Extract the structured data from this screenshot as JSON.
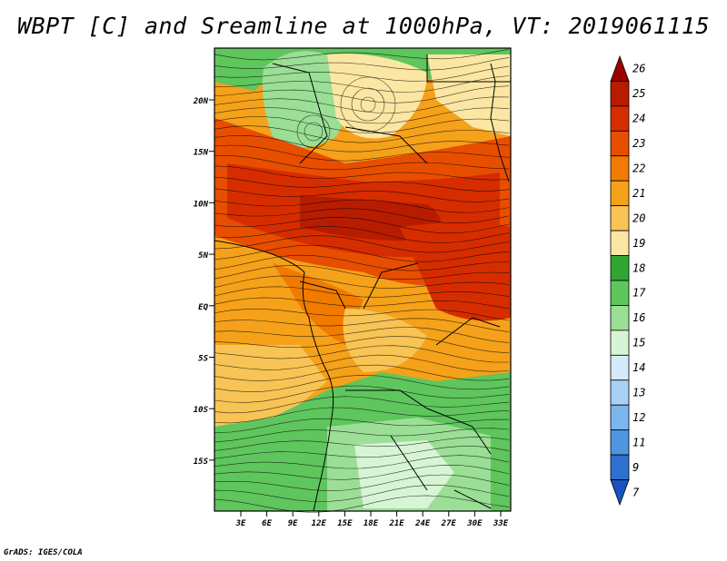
{
  "title": "WBPT [C] and Sreamline at 1000hPa, VT: 2019061115",
  "credit": "GrADS: IGES/COLA",
  "map": {
    "lat_labels": [
      "20N",
      "15N",
      "10N",
      "5N",
      "EQ",
      "5S",
      "10S",
      "15S"
    ],
    "lon_labels": [
      "3E",
      "6E",
      "9E",
      "12E",
      "15E",
      "18E",
      "21E",
      "24E",
      "27E",
      "30E",
      "33E"
    ]
  },
  "colorbar": {
    "labels": [
      "26",
      "25",
      "24",
      "23",
      "22",
      "21",
      "20",
      "19",
      "18",
      "17",
      "16",
      "15",
      "14",
      "13",
      "12",
      "11",
      "9",
      "7"
    ],
    "colors": [
      "#9b0000",
      "#b71c00",
      "#d62d00",
      "#e84e00",
      "#f07b00",
      "#f5a11a",
      "#f7c455",
      "#fbe7a3",
      "#2fa632",
      "#5fc55d",
      "#9bde96",
      "#d7f5d4",
      "#d5ebfa",
      "#a8d1f5",
      "#7db6ee",
      "#4f95e0",
      "#2d71d1",
      "#1a52c0"
    ]
  }
}
